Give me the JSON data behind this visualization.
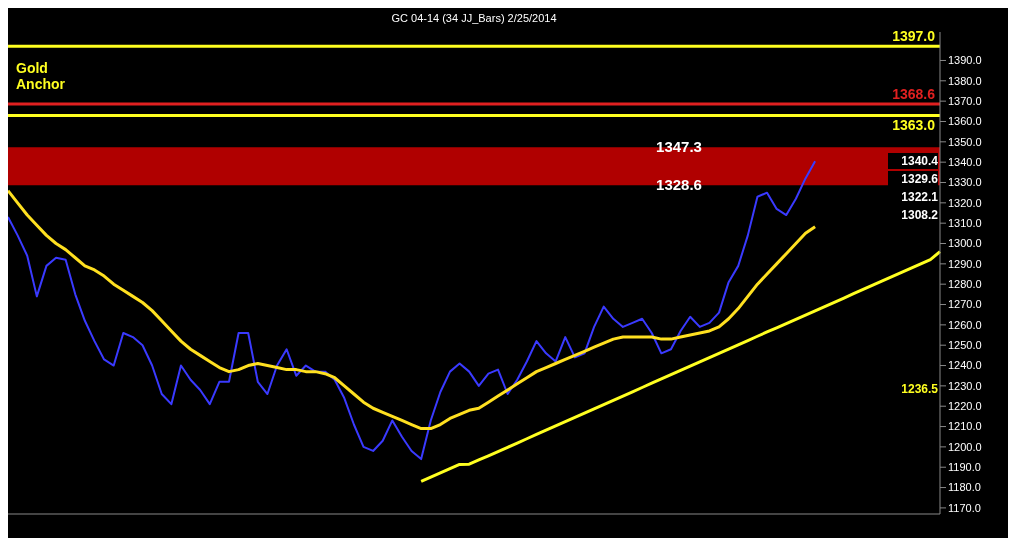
{
  "chart_data": {
    "type": "line",
    "title": "GC 04-14 (34 JJ_Bars)  2/25/2014",
    "categories": [
      null,
      null,
      null,
      null,
      null,
      null,
      null,
      null,
      null,
      null,
      null,
      null,
      null,
      null,
      null,
      null,
      null,
      null,
      null,
      null,
      null,
      null,
      null,
      null,
      null,
      null,
      null,
      null,
      null,
      null,
      null,
      null,
      null,
      null,
      null,
      null,
      null,
      null,
      null,
      null,
      null,
      null,
      null,
      null,
      null,
      null,
      null,
      null,
      null,
      null,
      null,
      null,
      null,
      null,
      null,
      null,
      null,
      null,
      null,
      null,
      null,
      null,
      null,
      null,
      null,
      null,
      null,
      null,
      null,
      null,
      null,
      null,
      null,
      null,
      null,
      null,
      null,
      null,
      null,
      null,
      null,
      null,
      null,
      null,
      null,
      null,
      null,
      null,
      null,
      null,
      null,
      null,
      null,
      null,
      null,
      null,
      null,
      null
    ],
    "series": [
      {
        "color": "#3a3aff",
        "values": [
          1313,
          1304,
          1294,
          1274,
          1289,
          1293,
          1292,
          1275,
          1262,
          1252,
          1243,
          1240,
          1256,
          1254,
          1250,
          1240,
          1226,
          1221,
          1240,
          1233,
          1228,
          1221,
          1232,
          1232,
          1256,
          1256,
          1232,
          1226,
          1240,
          1248,
          1235,
          1240,
          1237,
          1237,
          1233,
          1224,
          1211,
          1200,
          1198,
          1203,
          1213,
          1205,
          1198,
          1194,
          1213,
          1227,
          1237,
          1241,
          1237,
          1230,
          1236,
          1238,
          1226,
          1233,
          1242,
          1252,
          1246,
          1242,
          1254,
          1244,
          1246,
          1259,
          1269,
          1263,
          1259,
          1261,
          1263,
          1256,
          1246,
          1248,
          1257,
          1264,
          1259,
          1261,
          1266,
          1281,
          1289,
          1304,
          1323,
          1325,
          1317,
          1314,
          1322,
          1332,
          1340.4,
          null,
          null,
          null,
          null,
          null,
          null,
          null,
          null,
          null,
          null,
          null,
          null,
          null
        ]
      },
      {
        "color": "#ffe020",
        "values": [
          1326,
          1320,
          1314,
          1309,
          1304,
          1300,
          1297,
          1293,
          1289,
          1287,
          1284,
          1280,
          1277,
          1274,
          1271,
          1267,
          1262,
          1257,
          1252,
          1248,
          1245,
          1242,
          1239,
          1237,
          1238,
          1240,
          1241,
          1240,
          1239,
          1238,
          1238,
          1237,
          1237,
          1236,
          1234,
          1230,
          1226,
          1222,
          1219,
          1217,
          1215,
          1213,
          1211,
          1209,
          1209,
          1211,
          1214,
          1216,
          1218,
          1219,
          1222,
          1225,
          1228,
          1231,
          1234,
          1237,
          1239,
          1241,
          1243,
          1245,
          1247,
          1249,
          1251,
          1253,
          1254,
          1254,
          1254,
          1254,
          1253,
          1253,
          1254,
          1255,
          1256,
          1257,
          1259,
          1263,
          1268,
          1274,
          1280,
          1285,
          1290,
          1295,
          1300,
          1305,
          1308.2,
          null,
          null,
          null,
          null,
          null,
          null,
          null,
          null,
          null,
          null,
          null,
          null,
          null
        ]
      },
      {
        "color": "#ffff20",
        "values": [
          null,
          null,
          null,
          null,
          null,
          null,
          null,
          null,
          null,
          null,
          null,
          null,
          null,
          null,
          null,
          null,
          null,
          null,
          null,
          null,
          null,
          null,
          null,
          null,
          null,
          null,
          null,
          null,
          null,
          null,
          null,
          null,
          null,
          null,
          null,
          null,
          null,
          null,
          null,
          null,
          null,
          null,
          null,
          1183,
          1185.1,
          1187.2,
          1189.3,
          1191.4,
          1191.5,
          1193.6,
          1195.6,
          1197.7,
          1199.8,
          1201.9,
          1204,
          1206.1,
          1208.2,
          1210.3,
          1212.4,
          1214.5,
          1216.6,
          1218.7,
          1220.8,
          1222.9,
          1225,
          1227.1,
          1229.2,
          1231.3,
          1233.4,
          1235.5,
          1237.6,
          1239.7,
          1241.8,
          1243.9,
          1246,
          1248.1,
          1250.2,
          1252.3,
          1254.4,
          1256.5,
          1258.5,
          1260.6,
          1262.7,
          1264.8,
          1266.9,
          1269,
          1271.1,
          1273.2,
          1275.3,
          1277.4,
          1279.5,
          1281.6,
          1283.7,
          1285.8,
          1287.9,
          1290,
          1292.1,
          1296
        ]
      }
    ],
    "ylim": [
      1167,
      1404
    ],
    "yticks": [
      {
        "value": 1170,
        "label": "1170.0"
      },
      {
        "value": 1180,
        "label": "1180.0"
      },
      {
        "value": 1190,
        "label": "1190.0"
      },
      {
        "value": 1200,
        "label": "1200.0"
      },
      {
        "value": 1210,
        "label": "1210.0"
      },
      {
        "value": 1220,
        "label": "1220.0"
      },
      {
        "value": 1230,
        "label": "1230.0"
      },
      {
        "value": 1240,
        "label": "1240.0"
      },
      {
        "value": 1250,
        "label": "1250.0"
      },
      {
        "value": 1260,
        "label": "1260.0"
      },
      {
        "value": 1270,
        "label": "1270.0"
      },
      {
        "value": 1280,
        "label": "1280.0"
      },
      {
        "value": 1290,
        "label": "1290.0"
      },
      {
        "value": 1300,
        "label": "1300.0"
      },
      {
        "value": 1310,
        "label": "1310.0"
      },
      {
        "value": 1320,
        "label": "1320.0"
      },
      {
        "value": 1330,
        "label": "1330.0"
      },
      {
        "value": 1340,
        "label": "1340.0"
      },
      {
        "value": 1350,
        "label": "1350.0"
      },
      {
        "value": 1360,
        "label": "1360.0"
      },
      {
        "value": 1370,
        "label": "1370.0"
      },
      {
        "value": 1380,
        "label": "1380.0"
      },
      {
        "value": 1390,
        "label": "1390.0"
      }
    ],
    "tick_labels": "y",
    "ref_lines": [
      {
        "axis": "y",
        "value": 1397.0,
        "label": "1397.0",
        "color": "#ffff20"
      },
      {
        "axis": "y",
        "value": 1363.0,
        "label": "1363.0",
        "color": "#ffff20"
      },
      {
        "axis": "y",
        "value": 1368.6,
        "label": "1368.6",
        "color": "#e02020"
      }
    ],
    "bands": [
      {
        "axis": "y",
        "from": 1328.6,
        "to": 1347.3,
        "color": "#b00000"
      }
    ],
    "annotations": [
      "Gold Anchor",
      {
        "text": "1347.3",
        "y": 1347.3
      },
      {
        "text": "1328.6",
        "y": 1328.6
      },
      "1340.4",
      "1329.6",
      "1322.1",
      "1308.2",
      "1236.5"
    ]
  }
}
